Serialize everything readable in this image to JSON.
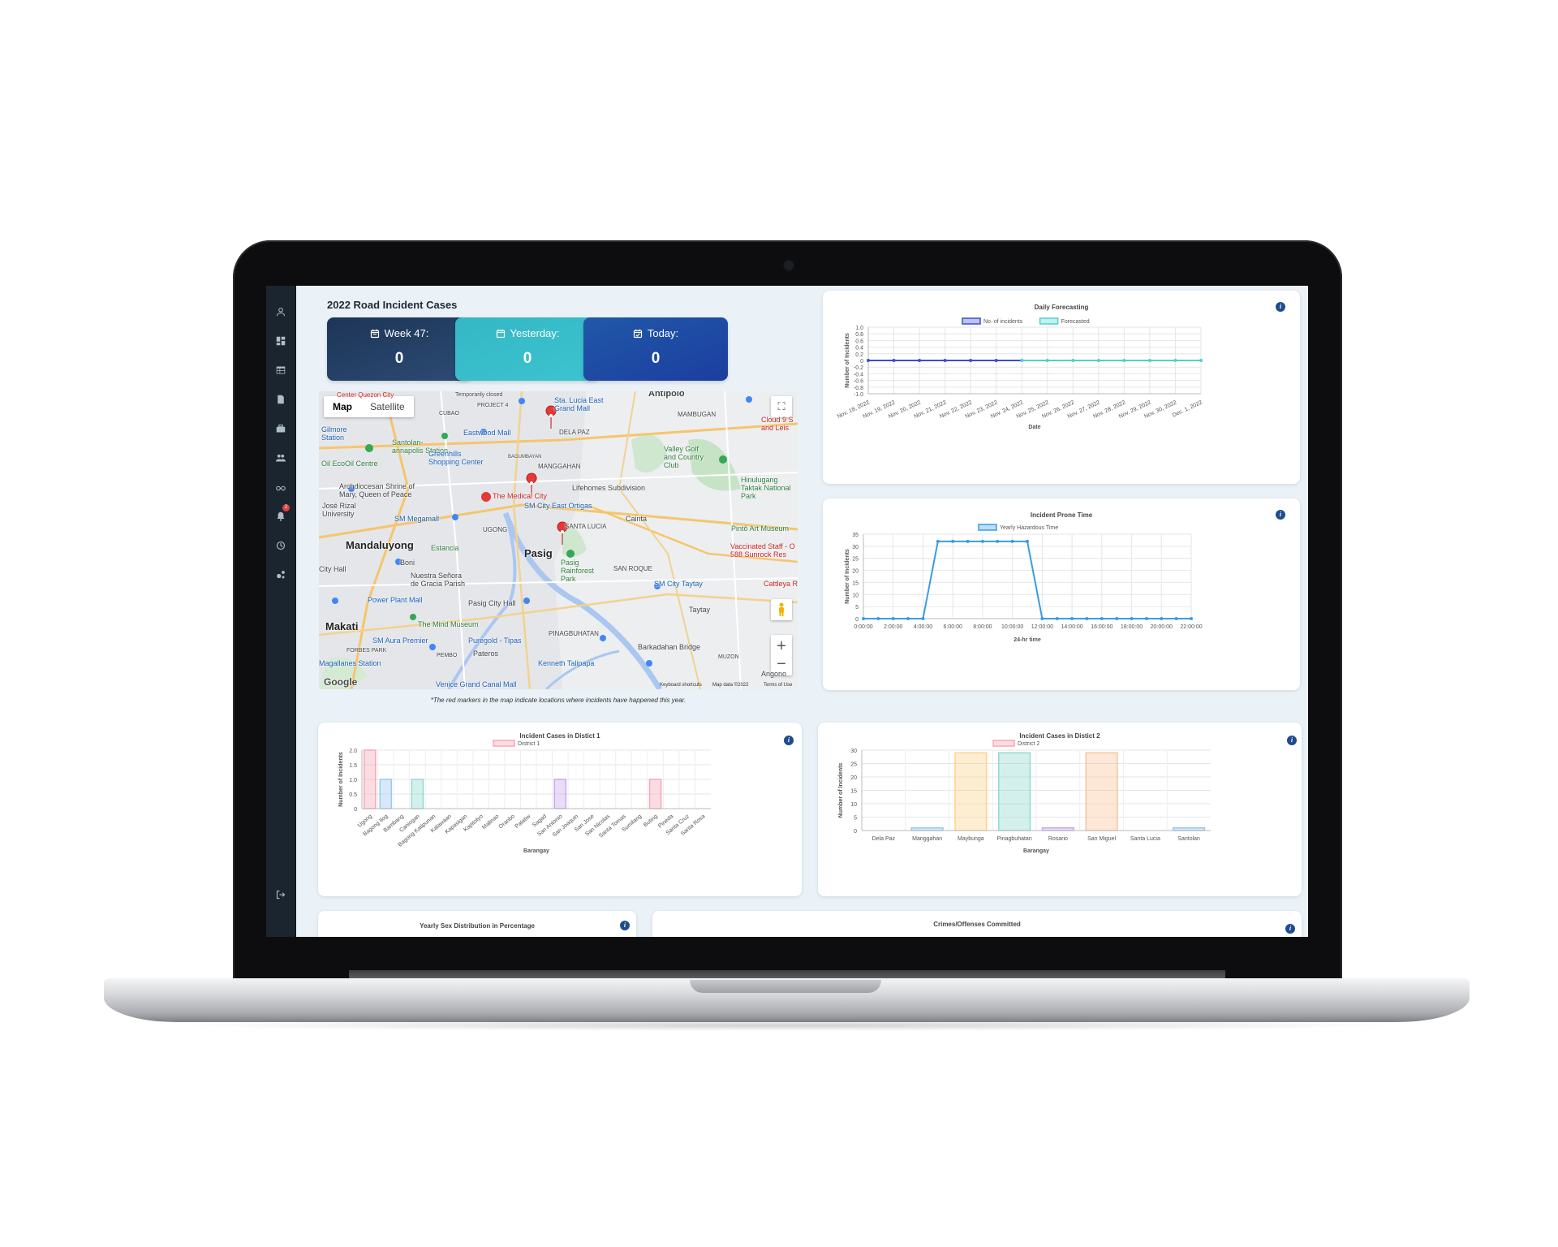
{
  "page": {
    "title": "2022 Road Incident Cases",
    "map_note": "*The red markers in the map indicate locations where incidents have happened this year."
  },
  "stats": [
    {
      "label": "Week 47:",
      "value": "0",
      "color_from": "#1d3557",
      "color_to": "#2c4b74"
    },
    {
      "label": "Yesterday:",
      "value": "0",
      "color_from": "#35b7c5",
      "color_to": "#3bc4cf"
    },
    {
      "label": "Today:",
      "value": "0",
      "color_from": "#2058a8",
      "color_to": "#1c3ea0"
    }
  ],
  "sidebar": {
    "icons": [
      "user-icon",
      "dashboard-icon",
      "table-icon",
      "report-icon",
      "briefcase-icon",
      "users-icon",
      "glasses-icon",
      "bell-icon",
      "history-icon",
      "settings-icon",
      "logout-icon"
    ],
    "notification_badge": "2"
  },
  "map": {
    "tabs": [
      "Map",
      "Satellite"
    ],
    "places": {
      "antipolo": "Antipolo",
      "sta_lucia": "Sta. Lucia East Grand Mall",
      "mambugan": "MAMBUGAN",
      "center_qc": "Center Quezon City",
      "temp_closed": "Temporarily closed",
      "cubao": "CUBAO",
      "project4": "PROJECT 4",
      "gilmore": "Gilmore Station",
      "eastwood": "Eastwood Mall",
      "dela_paz": "DELA PAZ",
      "santolan": "Santolan-annapolis Station",
      "greenhills": "Greenhills Shopping Center",
      "bagumbayan": "BAGUMBAYAN",
      "valley_golf": "Valley Golf and Country Club",
      "ecooil": "Oil EcoOil Centre",
      "manggahan": "MANGGAHAN",
      "cloud9": "Cloud 9 S and Leis",
      "archdiocesan": "Archdiocesan Shrine of Mary, Queen of Peace",
      "medical_city": "The Medical City",
      "lifehomes": "Lifehomes Subdivision",
      "hinulugang": "Hinulugang Taktak National Park",
      "jose_rizal": "José Rizal University",
      "sm_ortigas": "SM City East Ortigas",
      "sm_megamall": "SM Megamall",
      "ugong": "UGONG",
      "cainta": "Cainta",
      "pinto": "Pintô Art Museum",
      "santa_lucia": "SANTA LUCIA",
      "mandaluyong": "Mandaluyong",
      "estancia": "Estancia",
      "pasig": "Pasig",
      "vaccinated": "Vaccinated Staff - O 588 Sunrock Res",
      "pasig_rainforest": "Pasig Rainforest Park",
      "boni": "Boni",
      "city_hall": "City Hall",
      "nuestra": "Nuestra Señora de Gracia Parish",
      "san_roque": "SAN ROQUE",
      "sm_taytay": "SM City Taytay",
      "cattleya": "Cattleya R",
      "power_plant": "Power Plant Mall",
      "pasig_city_hall": "Pasig City Hall",
      "taytay": "Taytay",
      "makati": "Makati",
      "mind_museum": "The Mind Museum",
      "pinagbuhatan": "PINAGBUHATAN",
      "sm_aura": "SM Aura Premier",
      "puregold": "Puregold - Tipas",
      "barkadahan": "Barkadahan Bridge",
      "forbes": "FORBES PARK",
      "pembo": "PEMBO",
      "pateros": "Pateros",
      "kenneth": "Kenneth Talipapa",
      "muzon": "MUZON",
      "magallanes": "Magallanes Station",
      "angono": "Angono",
      "venice": "Venice Grand Canal Mall",
      "google": "Google",
      "keyboard": "Keyboard shortcuts",
      "map_data": "Map data ©2022",
      "terms": "Terms of Use"
    }
  },
  "charts": {
    "daily": {
      "title": "Daily Forecasting"
    },
    "prone": {
      "title": "Incident Prone Time"
    },
    "d1": {
      "title": "Incident Cases in Distict 1"
    },
    "d2": {
      "title": "Incident Cases in Distict 2"
    },
    "sex": {
      "title": "Yearly Sex Distribution in Percentage"
    },
    "crimes": {
      "title": "Crimes/Offenses Committed"
    }
  },
  "chart_data": [
    {
      "type": "line",
      "title": "Daily Forecasting",
      "xlabel": "Date",
      "ylabel": "Number of Incidents",
      "ylim": [
        -1.0,
        1.0
      ],
      "yticks": [
        "1.0",
        "0.8",
        "0.6",
        "0.4",
        "0.2",
        "0",
        "-0.2",
        "-0.4",
        "-0.6",
        "-0.8",
        "-1.0"
      ],
      "x": [
        "Nov. 18, 2022",
        "Nov. 19, 2022",
        "Nov. 20, 2022",
        "Nov. 21, 2022",
        "Nov. 22, 2022",
        "Nov. 23, 2022",
        "Nov. 24, 2022",
        "Nov. 25, 2022",
        "Nov. 26, 2022",
        "Nov. 27, 2022",
        "Nov. 28, 2022",
        "Nov. 29, 2022",
        "Nov. 30, 2022",
        "Dec. 1, 2022"
      ],
      "series": [
        {
          "name": "No. of incidents",
          "color": "#3b4fd0",
          "values": [
            0,
            0,
            0,
            0,
            0,
            0,
            0,
            null,
            null,
            null,
            null,
            null,
            null,
            null
          ]
        },
        {
          "name": "Forecasted",
          "color": "#4fd1cf",
          "values": [
            null,
            null,
            null,
            null,
            null,
            null,
            0,
            0,
            0,
            0,
            0,
            0,
            0,
            0
          ]
        }
      ],
      "legend": "top",
      "grid": true
    },
    {
      "type": "line",
      "title": "Incident Prone Time",
      "xlabel": "24-hr time",
      "ylabel": "Number of Incidents",
      "ylim": [
        0,
        35
      ],
      "yticks": [
        "35",
        "30",
        "25",
        "20",
        "15",
        "10",
        "5",
        "0"
      ],
      "x": [
        "0:00:00",
        "1:00:00",
        "2:00:00",
        "3:00:00",
        "4:00:00",
        "5:00:00",
        "6:00:00",
        "7:00:00",
        "8:00:00",
        "9:00:00",
        "10:00:00",
        "11:00:00",
        "12:00:00",
        "13:00:00",
        "14:00:00",
        "15:00:00",
        "16:00:00",
        "17:00:00",
        "18:00:00",
        "19:00:00",
        "20:00:00",
        "21:00:00",
        "22:00:00"
      ],
      "xtick_labels": [
        "0:00:00",
        "2:00:00",
        "4:00:00",
        "6:00:00",
        "8:00:00",
        "10:00:00",
        "12:00:00",
        "14:00:00",
        "16:00:00",
        "18:00:00",
        "20:00:00",
        "22:00:00"
      ],
      "series": [
        {
          "name": "Yearly Hazardous Time",
          "color": "#3a9de0",
          "values": [
            0,
            0,
            0,
            0,
            0,
            32,
            32,
            32,
            32,
            32,
            32,
            32,
            0,
            0,
            0,
            0,
            0,
            0,
            0,
            0,
            0,
            0,
            0
          ]
        }
      ],
      "legend": "top",
      "grid": true
    },
    {
      "type": "bar",
      "title": "Incident Cases in Distict 1",
      "xlabel": "Barangay",
      "ylabel": "Number of Incidents",
      "ylim": [
        0,
        2.0
      ],
      "yticks": [
        "2.0",
        "1.5",
        "1.0",
        "0.5",
        "0"
      ],
      "categories": [
        "Ugong",
        "Bagong Ilog",
        "Bambang",
        "Caniogan",
        "Bagong Katipunan",
        "Kalawaan",
        "Kapasigan",
        "Kapitolyo",
        "Malinao",
        "Oranbo",
        "Palatiw",
        "Sagad",
        "San Antonio",
        "San Joaquin",
        "San Jose",
        "San Nicolas",
        "Santa Tomas",
        "Sumilang",
        "Buting",
        "Pineda",
        "Santa Cruz",
        "Santa Rosa"
      ],
      "values": [
        2,
        1,
        0,
        1,
        0,
        0,
        0,
        0,
        0,
        0,
        0,
        0,
        1,
        0,
        0,
        0,
        0,
        0,
        1,
        0,
        0,
        0
      ],
      "colors": [
        "#f7a8b8",
        "#9cc8ee",
        "#fbd38d",
        "#94d9d2",
        "#c8a8f0",
        "#f9c49a",
        "#cfd2d6",
        "#f7a8b8",
        "#9cc8ee",
        "#fbd38d",
        "#94d9d2",
        "#c8a8f0",
        "#c8a8f0",
        "#cfd2d6",
        "#f7a8b8",
        "#9cc8ee",
        "#fbd38d",
        "#94d9d2",
        "#f7a8b8",
        "#f9c49a",
        "#cfd2d6",
        "#9cc8ee"
      ],
      "legend": "District 1",
      "grid": true
    },
    {
      "type": "bar",
      "title": "Incident Cases in Distict 2",
      "xlabel": "Barangay",
      "ylabel": "Number of Incidents",
      "ylim": [
        0,
        30
      ],
      "yticks": [
        "30",
        "25",
        "20",
        "15",
        "10",
        "5",
        "0"
      ],
      "categories": [
        "Dela Paz",
        "Manggahan",
        "Maybunga",
        "Pinagbuhatan",
        "Rosario",
        "San Miguel",
        "Santa Lucia",
        "Santolan"
      ],
      "values": [
        0,
        1,
        29,
        29,
        1,
        29,
        0,
        1
      ],
      "colors": [
        "#f7a8b8",
        "#9cc8ee",
        "#fbd38d",
        "#94d9d2",
        "#c8a8f0",
        "#f9c49a",
        "#cfd2d6",
        "#9cc8ee"
      ],
      "legend": "District 2",
      "grid": true
    }
  ]
}
